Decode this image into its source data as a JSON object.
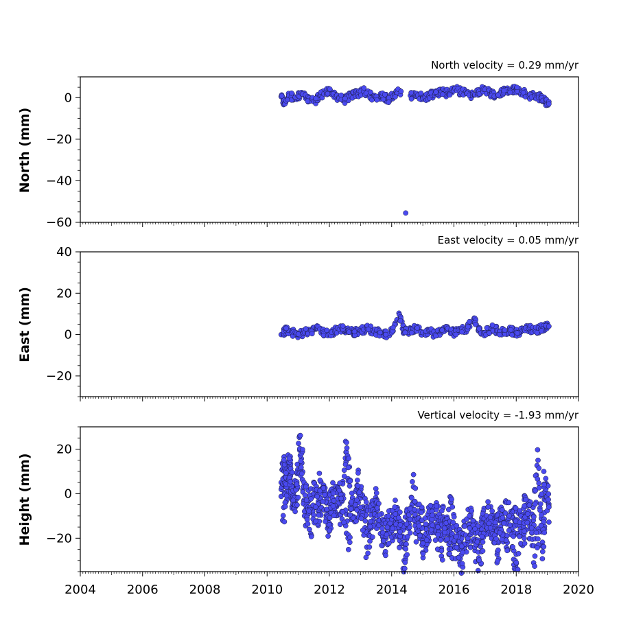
{
  "chart_data": [
    {
      "type": "scatter",
      "title": "North velocity = 0.29 mm/yr",
      "xlabel": "",
      "ylabel": "North (mm)",
      "xlim": [
        2004,
        2020
      ],
      "ylim": [
        -60,
        10
      ],
      "yticks": [
        0,
        -20,
        -40,
        -60
      ],
      "yticklabels": [
        "0",
        "−20",
        "−40",
        "−60"
      ],
      "xticks": [
        2004,
        2006,
        2008,
        2010,
        2012,
        2014,
        2016,
        2018,
        2020
      ],
      "xticklabels": [
        "2004",
        "2006",
        "2008",
        "2010",
        "2012",
        "2014",
        "2016",
        "2018",
        "2020"
      ],
      "series": [
        {
          "color": "#4a4af0",
          "x": [
            2010.45,
            2010.55,
            2010.7,
            2010.9,
            2011.1,
            2011.3,
            2011.5,
            2011.7,
            2011.9,
            2012.1,
            2012.3,
            2012.5,
            2012.7,
            2012.9,
            2013.1,
            2013.3,
            2013.5,
            2013.7,
            2013.9,
            2014.1,
            2014.3,
            2014.45,
            2014.6,
            2014.8,
            2015.0,
            2015.2,
            2015.4,
            2015.6,
            2015.8,
            2016.0,
            2016.2,
            2016.4,
            2016.6,
            2016.8,
            2017.0,
            2017.2,
            2017.4,
            2017.6,
            2017.8,
            2018.0,
            2018.2,
            2018.4,
            2018.6,
            2018.8,
            2018.95,
            2019.05
          ],
          "y": [
            0.5,
            -3,
            1,
            0,
            2,
            -1,
            -2,
            1,
            3,
            2,
            0,
            -1,
            1,
            2,
            3,
            1,
            0,
            1,
            -1,
            2,
            3,
            -55.5,
            1,
            2,
            0,
            1,
            2,
            3,
            2,
            4,
            3,
            2,
            1,
            3,
            4,
            2,
            1,
            3,
            4,
            4,
            3,
            1,
            1,
            0,
            -2,
            -3
          ]
        }
      ]
    },
    {
      "type": "scatter",
      "title": "East velocity = 0.05 mm/yr",
      "xlabel": "",
      "ylabel": "East (mm)",
      "xlim": [
        2004,
        2020
      ],
      "ylim": [
        -30,
        40
      ],
      "yticks": [
        40,
        20,
        0,
        -20
      ],
      "yticklabels": [
        "40",
        "20",
        "0",
        "−20"
      ],
      "xticks": [
        2004,
        2006,
        2008,
        2010,
        2012,
        2014,
        2016,
        2018,
        2020
      ],
      "xticklabels": [
        "2004",
        "2006",
        "2008",
        "2010",
        "2012",
        "2014",
        "2016",
        "2018",
        "2020"
      ],
      "series": [
        {
          "color": "#4a4af0",
          "x": [
            2010.45,
            2010.6,
            2010.8,
            2011.0,
            2011.2,
            2011.4,
            2011.6,
            2011.8,
            2012.0,
            2012.2,
            2012.4,
            2012.6,
            2012.8,
            2013.0,
            2013.2,
            2013.4,
            2013.6,
            2013.8,
            2014.0,
            2014.25,
            2014.4,
            2014.6,
            2014.8,
            2015.0,
            2015.2,
            2015.4,
            2015.6,
            2015.8,
            2016.0,
            2016.2,
            2016.4,
            2016.65,
            2016.8,
            2017.0,
            2017.2,
            2017.4,
            2017.6,
            2017.8,
            2018.0,
            2018.2,
            2018.4,
            2018.6,
            2018.8,
            2018.95,
            2019.05
          ],
          "y": [
            0,
            2,
            1,
            0,
            1,
            2,
            3,
            1,
            0,
            2,
            3,
            2,
            1,
            2,
            3,
            2,
            1,
            0,
            2,
            9.5,
            1,
            2,
            3,
            1,
            2,
            0,
            2,
            3,
            1,
            2,
            3,
            8,
            2,
            1,
            3,
            2,
            1,
            2,
            1,
            2,
            3,
            2,
            3,
            4,
            4
          ]
        }
      ]
    },
    {
      "type": "scatter",
      "title": "Vertical velocity = -1.93 mm/yr",
      "xlabel": "",
      "ylabel": "Height (mm)",
      "xlim": [
        2004,
        2020
      ],
      "ylim": [
        -35,
        30
      ],
      "yticks": [
        20,
        0,
        -20
      ],
      "yticklabels": [
        "20",
        "0",
        "−20"
      ],
      "xticks": [
        2004,
        2006,
        2008,
        2010,
        2012,
        2014,
        2016,
        2018,
        2020
      ],
      "xticklabels": [
        "2004",
        "2006",
        "2008",
        "2010",
        "2012",
        "2014",
        "2016",
        "2018",
        "2020"
      ],
      "series": [
        {
          "color": "#4a4af0",
          "x": [
            2010.45,
            2010.55,
            2010.65,
            2010.75,
            2010.85,
            2010.95,
            2011.05,
            2011.2,
            2011.35,
            2011.5,
            2011.65,
            2011.8,
            2011.95,
            2012.1,
            2012.25,
            2012.4,
            2012.55,
            2012.7,
            2012.85,
            2013.0,
            2013.15,
            2013.3,
            2013.45,
            2013.6,
            2013.75,
            2013.9,
            2014.05,
            2014.2,
            2014.35,
            2014.5,
            2014.65,
            2014.8,
            2014.95,
            2015.1,
            2015.25,
            2015.4,
            2015.55,
            2015.7,
            2015.85,
            2016.0,
            2016.15,
            2016.3,
            2016.45,
            2016.6,
            2016.75,
            2016.9,
            2017.05,
            2017.2,
            2017.35,
            2017.5,
            2017.65,
            2017.8,
            2017.95,
            2018.1,
            2018.25,
            2018.4,
            2018.55,
            2018.7,
            2018.85,
            2018.95,
            2019.05
          ],
          "y": [
            5,
            10,
            3,
            8,
            -5,
            2,
            26,
            -10,
            -3,
            0,
            -8,
            3,
            -12,
            -2,
            -5,
            -8,
            23,
            -4,
            -6,
            -2,
            -10,
            -14,
            -8,
            -12,
            -18,
            -10,
            -15,
            -12,
            -20,
            -14,
            -8,
            -16,
            -12,
            -18,
            -14,
            -10,
            -15,
            -12,
            -20,
            -22,
            -25,
            -18,
            -20,
            -14,
            -22,
            -16,
            -10,
            -14,
            -18,
            -12,
            -20,
            -16,
            -12,
            -14,
            -18,
            -8,
            -12,
            15,
            -26,
            2,
            -6
          ]
        },
        {
          "color": "#4a4af0",
          "x": [
            2010.5,
            2010.7,
            2010.9,
            2011.1,
            2011.4,
            2011.7,
            2012.0,
            2012.3,
            2012.6,
            2012.9,
            2013.2,
            2013.5,
            2013.8,
            2014.1,
            2014.4,
            2014.7,
            2015.0,
            2015.3,
            2015.6,
            2015.9,
            2016.2,
            2016.5,
            2016.8,
            2017.1,
            2017.4,
            2017.7,
            2018.0,
            2018.3,
            2018.6,
            2018.9
          ],
          "y": [
            -12,
            14,
            -8,
            18,
            -18,
            6,
            -14,
            2,
            -20,
            6,
            -24,
            -4,
            -26,
            -6,
            -30,
            3,
            -22,
            -8,
            -28,
            -4,
            -32,
            -10,
            -30,
            -6,
            -26,
            -4,
            -34,
            -2,
            -28,
            4
          ]
        }
      ]
    }
  ]
}
